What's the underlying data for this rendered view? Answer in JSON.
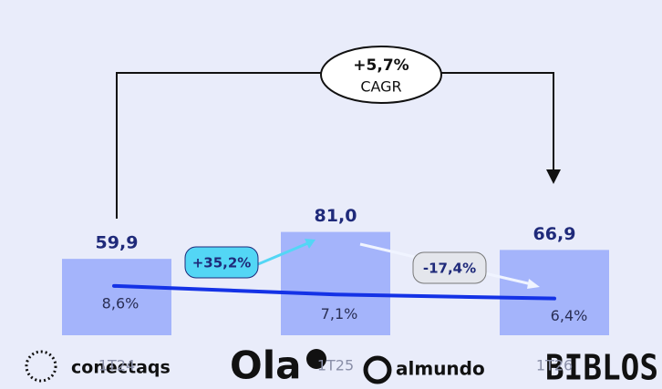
{
  "chart_data": {
    "type": "bar",
    "categories": [
      "1T24",
      "1T25",
      "1T26"
    ],
    "series": [
      {
        "type": "bar",
        "color": "#a4b4fb",
        "values": [
          59.9,
          81.0,
          66.9
        ],
        "value_labels": [
          "59,9",
          "81,0",
          "66,9"
        ]
      },
      {
        "type": "line",
        "color": "#1432e6",
        "values": [
          8.6,
          7.1,
          6.4
        ],
        "value_labels": [
          "8,6%",
          "7,1%",
          "6,4%"
        ]
      }
    ],
    "annotations": {
      "cagr": "+5,7%",
      "cagr_label": "CAGR",
      "growth_1": "+35,2%",
      "growth_2": "-17,4%"
    }
  },
  "logos": [
    "conectaqs",
    "Ola",
    "almundo",
    "BIBLOS"
  ]
}
